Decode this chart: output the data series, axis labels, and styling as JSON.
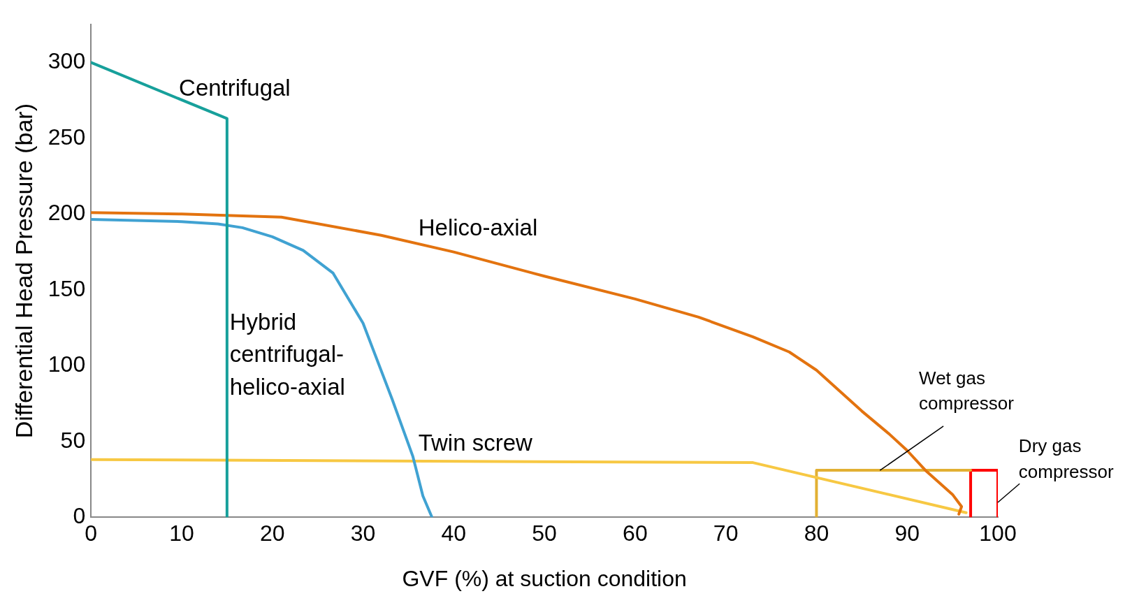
{
  "chart_data": {
    "type": "line",
    "xlabel": "GVF (%) at suction condition",
    "ylabel": "Differential Head Pressure (bar)",
    "xlim": [
      0,
      100
    ],
    "xticks": [
      0,
      10,
      20,
      30,
      40,
      50,
      60,
      70,
      80,
      90,
      100
    ],
    "ylim": [
      0,
      325
    ],
    "yticks": [
      0,
      50,
      100,
      150,
      200,
      250,
      300
    ],
    "grid": false,
    "legend": false,
    "marker": "none",
    "line_style": "solid",
    "series": [
      {
        "name": "Centrifugal",
        "color": "#17a09b",
        "x": [
          0,
          15,
          15
        ],
        "values": [
          300,
          263,
          0
        ]
      },
      {
        "name": "Helico-axial",
        "color": "#e3730f",
        "x": [
          0,
          10,
          21,
          32,
          40,
          50,
          60,
          67,
          73,
          77,
          80,
          85,
          88,
          90,
          92,
          95,
          96,
          95.7
        ],
        "values": [
          201,
          200,
          198,
          186,
          175,
          159,
          144,
          132,
          119,
          109,
          97,
          70,
          55,
          44,
          31,
          15,
          7,
          2
        ]
      },
      {
        "name": "Hybrid centrifugal-helico-axial",
        "color": "#40a2d2",
        "x": [
          0,
          10,
          14,
          16.7,
          20,
          23.4,
          26.7,
          30,
          33.2,
          35.5,
          36.6,
          37.6
        ],
        "values": [
          196.5,
          195,
          193.5,
          191,
          185,
          176,
          161,
          128,
          78,
          40,
          14,
          0
        ]
      },
      {
        "name": "Twin screw",
        "color": "#f7c843",
        "x": [
          0,
          73,
          96.5
        ],
        "values": [
          38,
          36,
          3
        ]
      },
      {
        "name": "Wet gas compressor",
        "color": "#e2b033",
        "x": [
          80,
          80,
          97
        ],
        "values": [
          0,
          31,
          31
        ]
      },
      {
        "name": "Dry gas compressor",
        "color": "#ff0000",
        "x": [
          97,
          97,
          100,
          100
        ],
        "values": [
          0,
          31,
          31,
          0
        ]
      }
    ]
  }
}
